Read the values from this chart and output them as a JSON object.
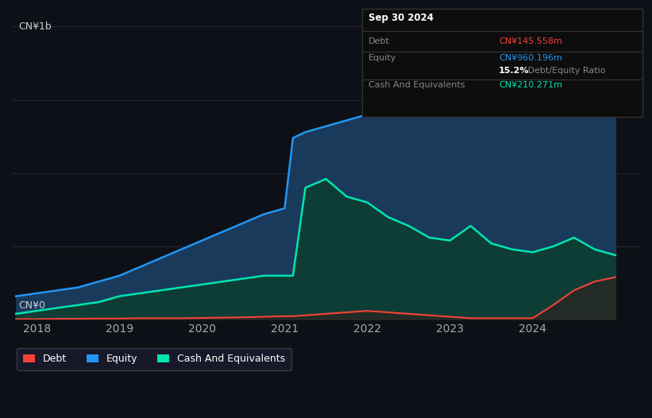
{
  "bg_color": "#0d1117",
  "plot_bg_color": "#0d1117",
  "title_box": {
    "date": "Sep 30 2024",
    "debt_label": "Debt",
    "debt_value": "CN¥145.558m",
    "equity_label": "Equity",
    "equity_value": "CN¥960.196m",
    "ratio_bold": "15.2%",
    "ratio_rest": " Debt/Equity Ratio",
    "cash_label": "Cash And Equivalents",
    "cash_value": "CN¥210.271m"
  },
  "ylabel_top": "CN¥1b",
  "ylabel_bottom": "CN¥0",
  "x_ticks": [
    2018,
    2019,
    2020,
    2021,
    2022,
    2023,
    2024
  ],
  "xlim": [
    2017.7,
    2025.3
  ],
  "ylim": [
    0,
    1.05
  ],
  "equity_color": "#2196f3",
  "debt_color": "#f44336",
  "cash_color": "#00e5b0",
  "equity_fill": "#1a3a5c",
  "cash_fill": "#0d3d35",
  "grid_color": "#2a2a3a",
  "legend_bg": "#1a1a2e",
  "time_x": [
    2017.75,
    2018.0,
    2018.25,
    2018.5,
    2018.75,
    2019.0,
    2019.25,
    2019.5,
    2019.75,
    2020.0,
    2020.25,
    2020.5,
    2020.75,
    2021.0,
    2021.1,
    2021.25,
    2021.5,
    2021.75,
    2022.0,
    2022.25,
    2022.5,
    2022.75,
    2023.0,
    2023.25,
    2023.5,
    2023.75,
    2024.0,
    2024.25,
    2024.5,
    2024.75,
    2025.0
  ],
  "equity_y": [
    0.08,
    0.09,
    0.1,
    0.11,
    0.13,
    0.15,
    0.18,
    0.21,
    0.24,
    0.27,
    0.3,
    0.33,
    0.36,
    0.38,
    0.62,
    0.64,
    0.66,
    0.68,
    0.7,
    0.73,
    0.75,
    0.77,
    0.79,
    0.81,
    0.84,
    0.87,
    0.9,
    0.93,
    0.96,
    0.99,
    1.01
  ],
  "cash_y": [
    0.02,
    0.03,
    0.04,
    0.05,
    0.06,
    0.08,
    0.09,
    0.1,
    0.11,
    0.12,
    0.13,
    0.14,
    0.15,
    0.15,
    0.15,
    0.45,
    0.48,
    0.42,
    0.4,
    0.35,
    0.32,
    0.28,
    0.27,
    0.32,
    0.26,
    0.24,
    0.23,
    0.25,
    0.28,
    0.24,
    0.22
  ],
  "debt_y": [
    0.002,
    0.002,
    0.003,
    0.003,
    0.004,
    0.004,
    0.005,
    0.005,
    0.005,
    0.006,
    0.007,
    0.008,
    0.01,
    0.012,
    0.012,
    0.015,
    0.02,
    0.025,
    0.03,
    0.025,
    0.02,
    0.015,
    0.01,
    0.005,
    0.005,
    0.005,
    0.005,
    0.05,
    0.1,
    0.13,
    0.145
  ]
}
